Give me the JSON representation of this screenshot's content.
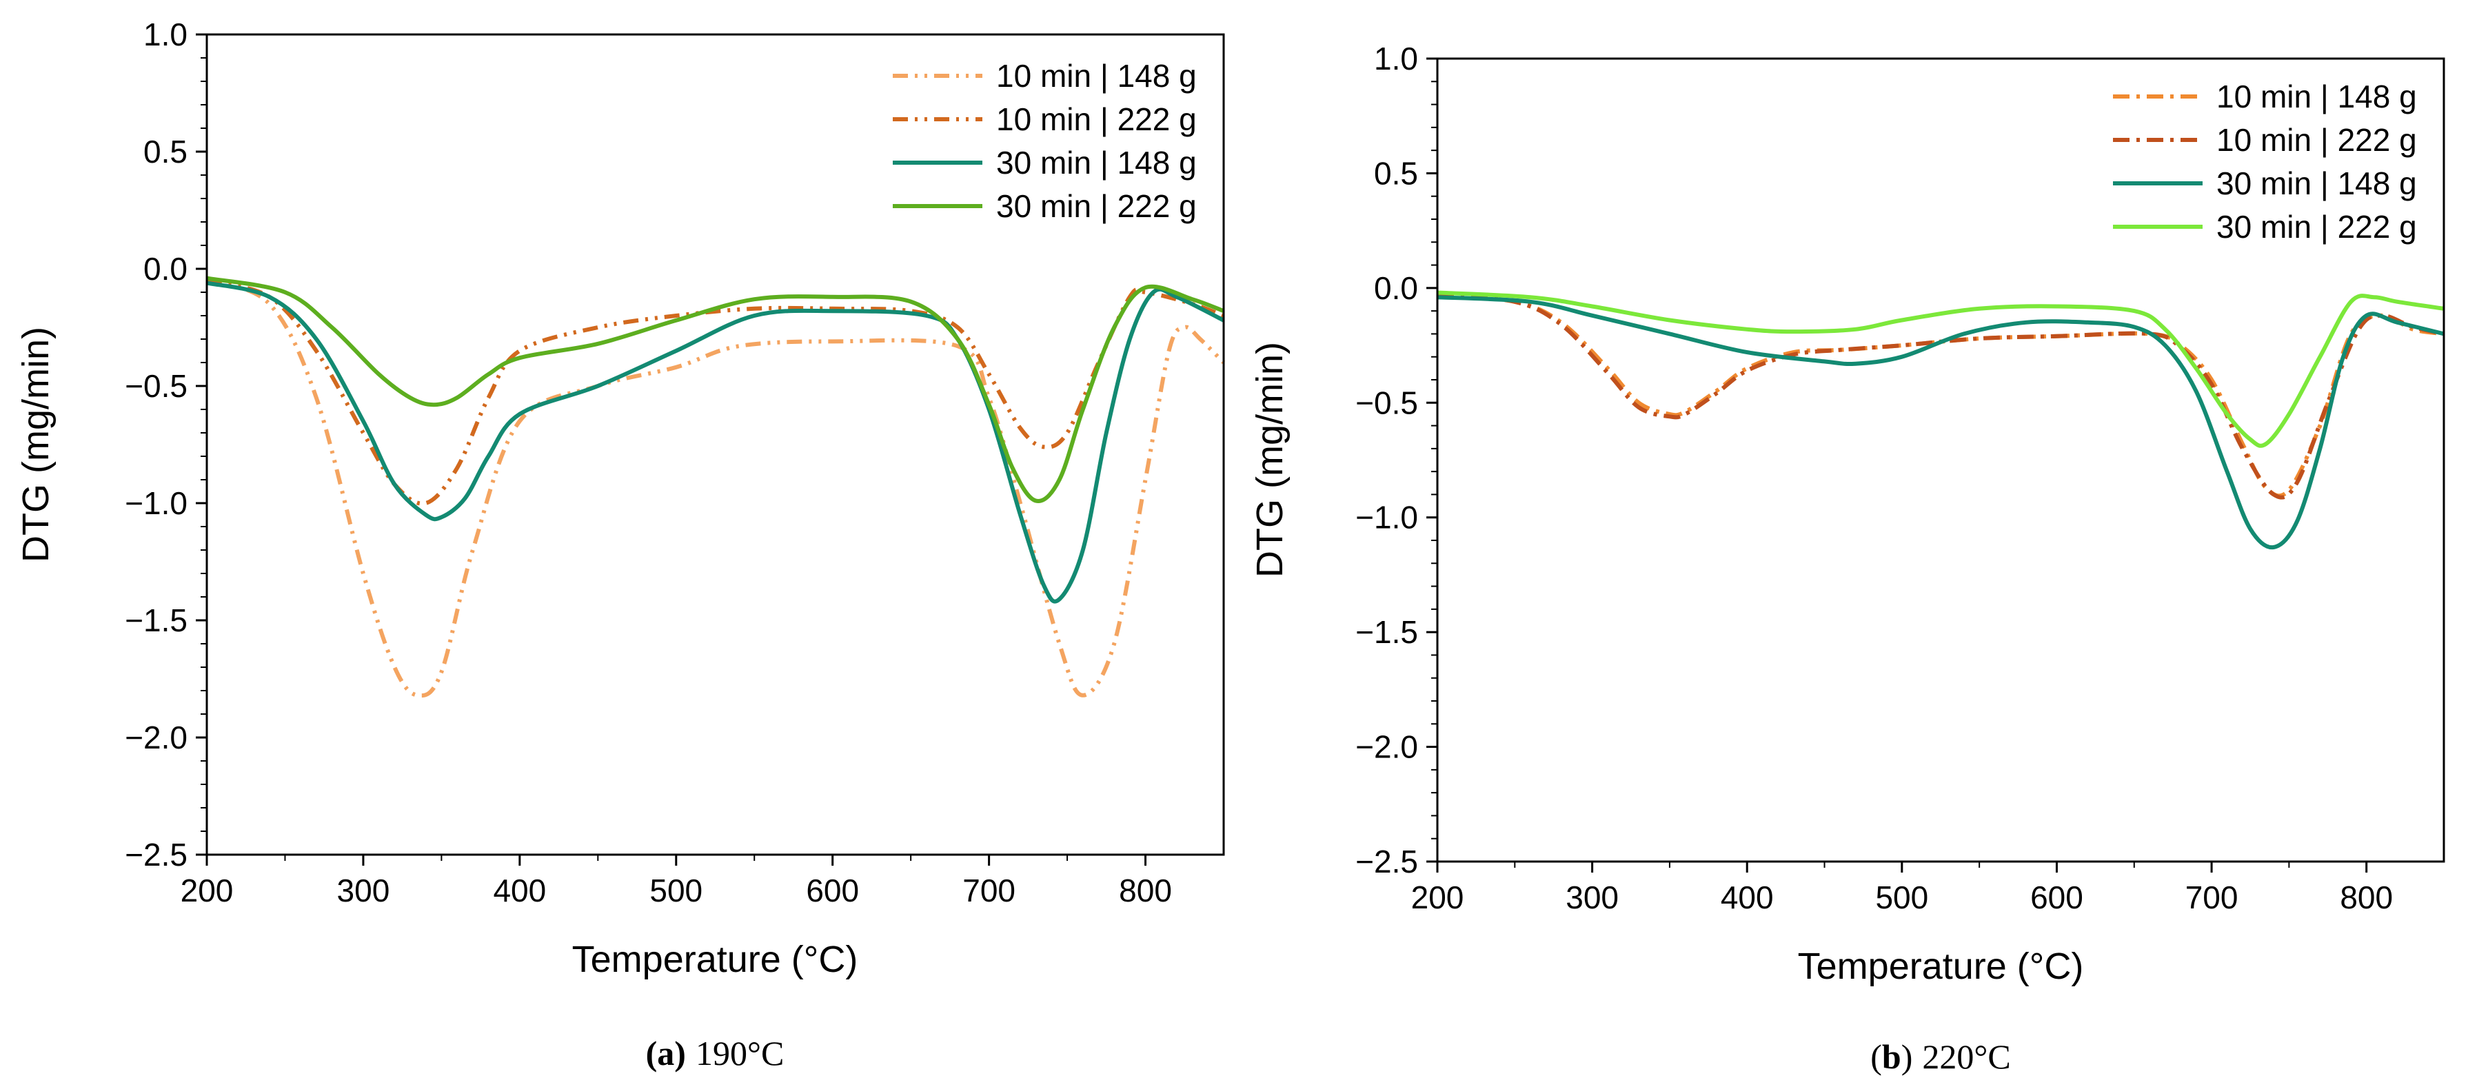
{
  "chart_data": [
    {
      "type": "line",
      "panel_label": "(a)",
      "panel_title": "190°C",
      "xlabel": "Temperature (°C)",
      "ylabel": "DTG (mg/min)",
      "xlim": [
        200,
        850
      ],
      "ylim": [
        -2.5,
        1.0
      ],
      "x_ticks": [
        200,
        300,
        400,
        500,
        600,
        700,
        800
      ],
      "y_ticks": [
        -2.5,
        -2.0,
        -1.5,
        -1.0,
        -0.5,
        0.0,
        0.5,
        1.0
      ],
      "x_tick_labels": [
        "200",
        "300",
        "400",
        "500",
        "600",
        "700",
        "800"
      ],
      "y_tick_labels": [
        "−2.5",
        "−2.0",
        "−1.5",
        "−1.0",
        "−0.5",
        "0.0",
        "0.5",
        "1.0"
      ],
      "grid": false,
      "legend_position": "top-right",
      "series": [
        {
          "name": "10 min | 148 g",
          "color": "#F4A460",
          "dash": "dash-dot-dot",
          "x": [
            200,
            240,
            270,
            300,
            320,
            335,
            350,
            370,
            400,
            450,
            500,
            540,
            600,
            680,
            700,
            720,
            745,
            760,
            780,
            800,
            815,
            825,
            835,
            850
          ],
          "y": [
            -0.05,
            -0.15,
            -0.55,
            -1.3,
            -1.7,
            -1.82,
            -1.72,
            -1.2,
            -0.65,
            -0.5,
            -0.42,
            -0.33,
            -0.31,
            -0.33,
            -0.55,
            -1.0,
            -1.6,
            -1.82,
            -1.6,
            -0.9,
            -0.35,
            -0.25,
            -0.3,
            -0.4
          ]
        },
        {
          "name": "10 min | 222 g",
          "color": "#D2691E",
          "dash": "dash-dot-dot",
          "x": [
            200,
            240,
            270,
            300,
            320,
            340,
            360,
            380,
            400,
            450,
            500,
            550,
            600,
            650,
            680,
            700,
            720,
            735,
            750,
            770,
            790,
            800,
            830,
            850
          ],
          "y": [
            -0.05,
            -0.12,
            -0.35,
            -0.7,
            -0.92,
            -1.0,
            -0.85,
            -0.55,
            -0.35,
            -0.25,
            -0.2,
            -0.17,
            -0.17,
            -0.18,
            -0.25,
            -0.45,
            -0.68,
            -0.76,
            -0.7,
            -0.4,
            -0.12,
            -0.1,
            -0.15,
            -0.2
          ]
        },
        {
          "name": "30 min | 148 g",
          "color": "#138A72",
          "dash": "solid",
          "x": [
            200,
            240,
            270,
            300,
            320,
            340,
            350,
            365,
            380,
            400,
            450,
            500,
            550,
            600,
            660,
            680,
            700,
            720,
            735,
            745,
            760,
            775,
            790,
            805,
            820,
            850
          ],
          "y": [
            -0.06,
            -0.12,
            -0.3,
            -0.65,
            -0.92,
            -1.05,
            -1.06,
            -0.98,
            -0.8,
            -0.62,
            -0.5,
            -0.35,
            -0.2,
            -0.18,
            -0.2,
            -0.3,
            -0.6,
            -1.05,
            -1.35,
            -1.41,
            -1.2,
            -0.7,
            -0.3,
            -0.1,
            -0.12,
            -0.22
          ]
        },
        {
          "name": "30 min | 222 g",
          "color": "#5DAE1F",
          "dash": "solid",
          "x": [
            200,
            250,
            280,
            310,
            330,
            345,
            360,
            380,
            400,
            450,
            500,
            550,
            600,
            650,
            680,
            700,
            715,
            730,
            745,
            760,
            780,
            800,
            830,
            850
          ],
          "y": [
            -0.04,
            -0.1,
            -0.25,
            -0.45,
            -0.55,
            -0.58,
            -0.55,
            -0.45,
            -0.38,
            -0.32,
            -0.22,
            -0.13,
            -0.12,
            -0.14,
            -0.3,
            -0.58,
            -0.85,
            -0.99,
            -0.9,
            -0.6,
            -0.25,
            -0.08,
            -0.13,
            -0.18
          ]
        }
      ]
    },
    {
      "type": "line",
      "panel_label": "(b)",
      "panel_title": "220°C",
      "xlabel": "Temperature (°C)",
      "ylabel": "DTG (mg/min)",
      "xlim": [
        200,
        850
      ],
      "ylim": [
        -2.5,
        1.0
      ],
      "x_ticks": [
        200,
        300,
        400,
        500,
        600,
        700,
        800
      ],
      "y_ticks": [
        -2.5,
        -2.0,
        -1.5,
        -1.0,
        -0.5,
        0.0,
        0.5,
        1.0
      ],
      "x_tick_labels": [
        "200",
        "300",
        "400",
        "500",
        "600",
        "700",
        "800"
      ],
      "y_tick_labels": [
        "−2.5",
        "−2.0",
        "−1.5",
        "−1.0",
        "−0.5",
        "0.0",
        "0.5",
        "1.0"
      ],
      "grid": false,
      "legend_position": "top-right",
      "series": [
        {
          "name": "10 min | 148 g",
          "color": "#F08A30",
          "dash": "dash-dot",
          "x": [
            200,
            250,
            280,
            310,
            330,
            350,
            360,
            380,
            400,
            430,
            460,
            500,
            550,
            600,
            660,
            680,
            700,
            720,
            735,
            750,
            770,
            790,
            810,
            830,
            850
          ],
          "y": [
            -0.03,
            -0.06,
            -0.15,
            -0.35,
            -0.5,
            -0.55,
            -0.54,
            -0.45,
            -0.35,
            -0.28,
            -0.27,
            -0.25,
            -0.22,
            -0.21,
            -0.2,
            -0.25,
            -0.4,
            -0.68,
            -0.87,
            -0.88,
            -0.6,
            -0.2,
            -0.12,
            -0.18,
            -0.2
          ]
        },
        {
          "name": "10 min | 222 g",
          "color": "#C0501C",
          "dash": "dash-dot",
          "x": [
            200,
            250,
            280,
            310,
            330,
            350,
            360,
            380,
            400,
            430,
            460,
            500,
            550,
            600,
            660,
            680,
            700,
            720,
            740,
            755,
            775,
            795,
            810,
            830,
            850
          ],
          "y": [
            -0.03,
            -0.06,
            -0.16,
            -0.37,
            -0.52,
            -0.56,
            -0.55,
            -0.46,
            -0.36,
            -0.29,
            -0.27,
            -0.25,
            -0.22,
            -0.21,
            -0.2,
            -0.26,
            -0.42,
            -0.7,
            -0.9,
            -0.85,
            -0.5,
            -0.18,
            -0.12,
            -0.17,
            -0.2
          ]
        },
        {
          "name": "30 min | 148 g",
          "color": "#138A72",
          "dash": "solid",
          "x": [
            200,
            260,
            300,
            350,
            400,
            450,
            470,
            500,
            540,
            580,
            620,
            650,
            670,
            690,
            710,
            725,
            740,
            755,
            770,
            785,
            800,
            820,
            850
          ],
          "y": [
            -0.04,
            -0.06,
            -0.12,
            -0.2,
            -0.28,
            -0.32,
            -0.33,
            -0.3,
            -0.2,
            -0.15,
            -0.15,
            -0.17,
            -0.25,
            -0.45,
            -0.8,
            -1.05,
            -1.13,
            -1.02,
            -0.7,
            -0.3,
            -0.12,
            -0.15,
            -0.2
          ]
        },
        {
          "name": "30 min | 222 g",
          "color": "#7CE83A",
          "dash": "solid",
          "x": [
            200,
            260,
            300,
            350,
            400,
            430,
            470,
            500,
            550,
            600,
            650,
            670,
            690,
            710,
            725,
            735,
            750,
            770,
            790,
            805,
            820,
            850
          ],
          "y": [
            -0.02,
            -0.04,
            -0.08,
            -0.14,
            -0.18,
            -0.19,
            -0.18,
            -0.14,
            -0.09,
            -0.08,
            -0.1,
            -0.18,
            -0.35,
            -0.55,
            -0.66,
            -0.68,
            -0.55,
            -0.3,
            -0.06,
            -0.04,
            -0.06,
            -0.09
          ]
        }
      ]
    }
  ]
}
